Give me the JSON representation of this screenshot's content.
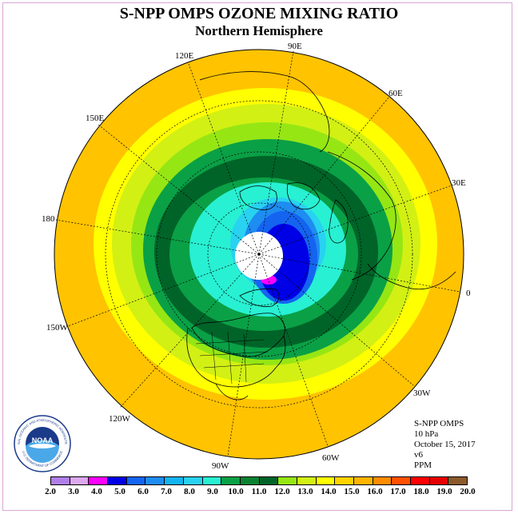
{
  "title": "S-NPP OMPS OZONE MIXING RATIO",
  "subtitle": "Northern Hemisphere",
  "longitude_labels": [
    "90E",
    "60E",
    "30E",
    "0",
    "30W",
    "60W",
    "90W",
    "120W",
    "150W",
    "180",
    "150E",
    "120E"
  ],
  "info": {
    "instrument": "S-NPP OMPS",
    "level": "10 hPa",
    "date": "October 15, 2017",
    "version": "v6",
    "units": "PPM"
  },
  "logo": {
    "text": "NOAA",
    "ring_text": "NATIONAL OCEANIC AND ATMOSPHERIC ADMINISTRATION",
    "ring_text_bottom": "U.S. DEPARTMENT OF COMMERCE"
  },
  "colorbar": {
    "ticks": [
      "2.0",
      "3.0",
      "4.0",
      "5.0",
      "6.0",
      "7.0",
      "8.0",
      "9.0",
      "10.0",
      "11.0",
      "12.0",
      "13.0",
      "14.0",
      "15.0",
      "16.0",
      "17.0",
      "18.0",
      "19.0",
      "20.0"
    ],
    "colors": [
      "#b07ee8",
      "#dca8f0",
      "#ff00ff",
      "#0000e6",
      "#1464f0",
      "#1e8cf0",
      "#14b4f0",
      "#28d2f0",
      "#28f0d2",
      "#0aa046",
      "#0a8232",
      "#006428",
      "#96e614",
      "#d2f014",
      "#ffff00",
      "#ffd200",
      "#ffb400",
      "#ff8c00",
      "#ff5000",
      "#ff0000",
      "#e60000",
      "#8b5a2b"
    ]
  },
  "ozone_map": {
    "description_units": "PPM",
    "contour_bands": [
      {
        "level": 15.0,
        "color": "#ffff00"
      },
      {
        "level": 14.0,
        "color": "#d2f014"
      },
      {
        "level": 13.0,
        "color": "#96e614"
      },
      {
        "level": 12.0,
        "color": "#0aa046"
      },
      {
        "level": 11.0,
        "color": "#006428"
      },
      {
        "level": 10.0,
        "color": "#0aa046"
      },
      {
        "level": 9.0,
        "color": "#28f0d2"
      },
      {
        "level": 8.0,
        "color": "#28d2f0"
      },
      {
        "level": 7.0,
        "color": "#1e8cf0"
      },
      {
        "level": 6.0,
        "color": "#1464f0"
      },
      {
        "level": 5.0,
        "color": "#0000e6"
      },
      {
        "level": 4.0,
        "color": "#ff00ff"
      }
    ],
    "outer_color": "#ffc300",
    "no_data_color": "#ffffff"
  }
}
